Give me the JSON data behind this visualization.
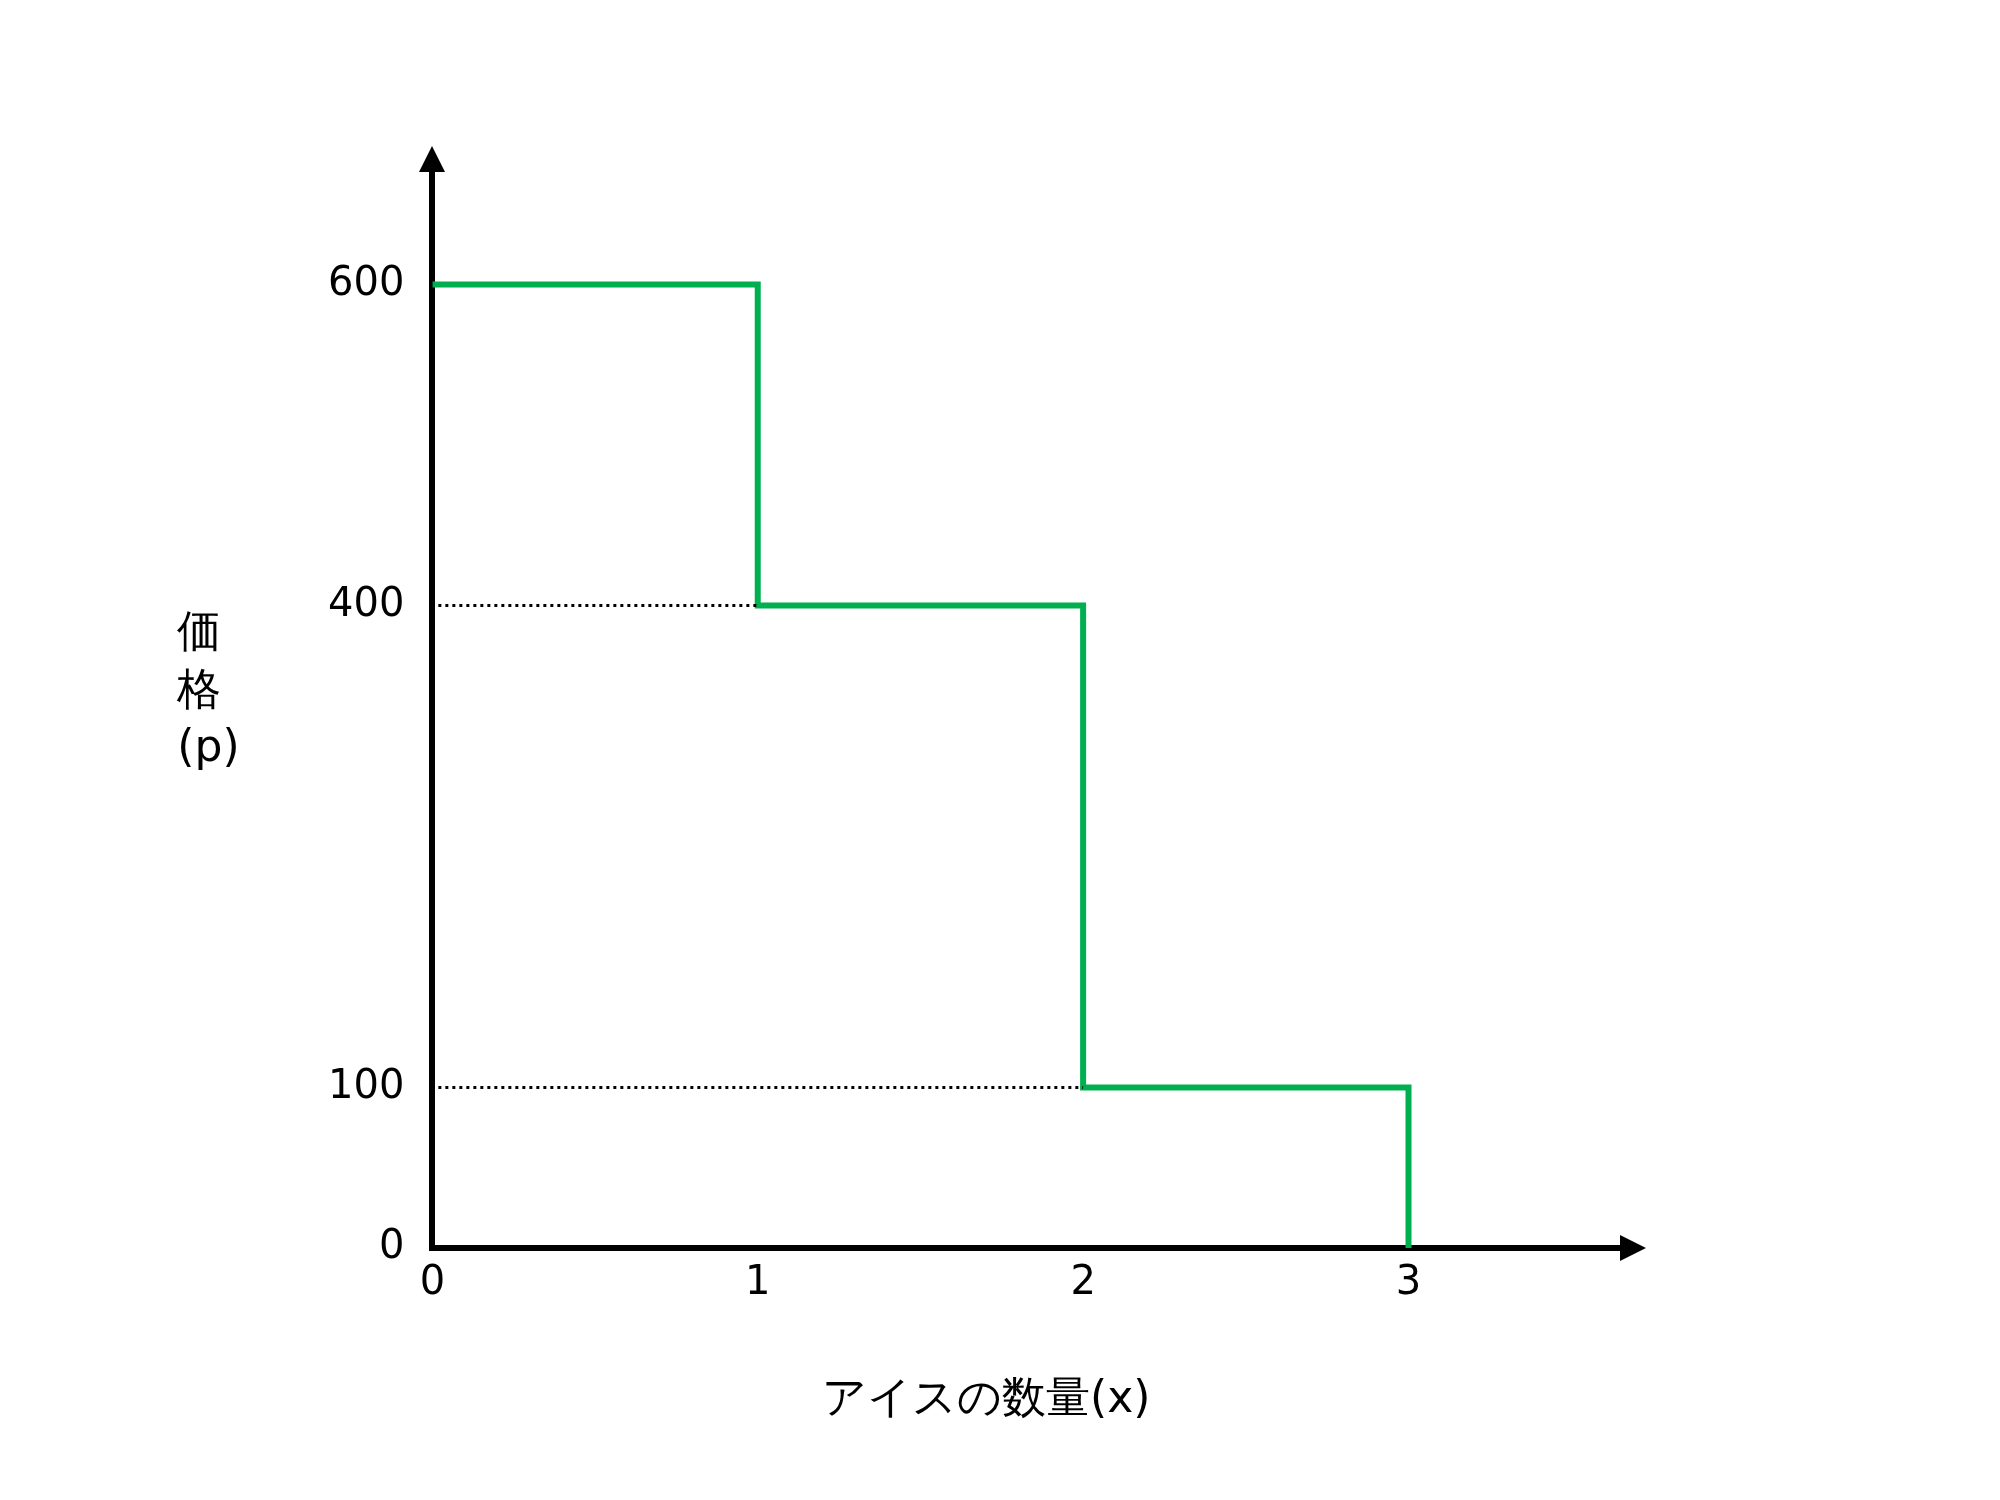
{
  "chart_data": {
    "type": "step",
    "xlabel": "アイスの数量(x)",
    "ylabel": "価格(p)",
    "x": [
      0,
      1,
      2,
      3
    ],
    "values": [
      600,
      400,
      100,
      0
    ],
    "color": "#00b050",
    "xlim": [
      0,
      3.65
    ],
    "ylim": [
      0,
      670
    ],
    "xticks": [
      0,
      1,
      2,
      3
    ],
    "yticks": [
      0,
      100,
      400,
      600
    ],
    "grid": false,
    "legend": false,
    "ref_lines": [
      {
        "axis": "y",
        "value": 400,
        "line_style": "dotted",
        "color": "#000000"
      },
      {
        "axis": "y",
        "value": 100,
        "line_style": "dotted",
        "color": "#000000"
      }
    ]
  }
}
